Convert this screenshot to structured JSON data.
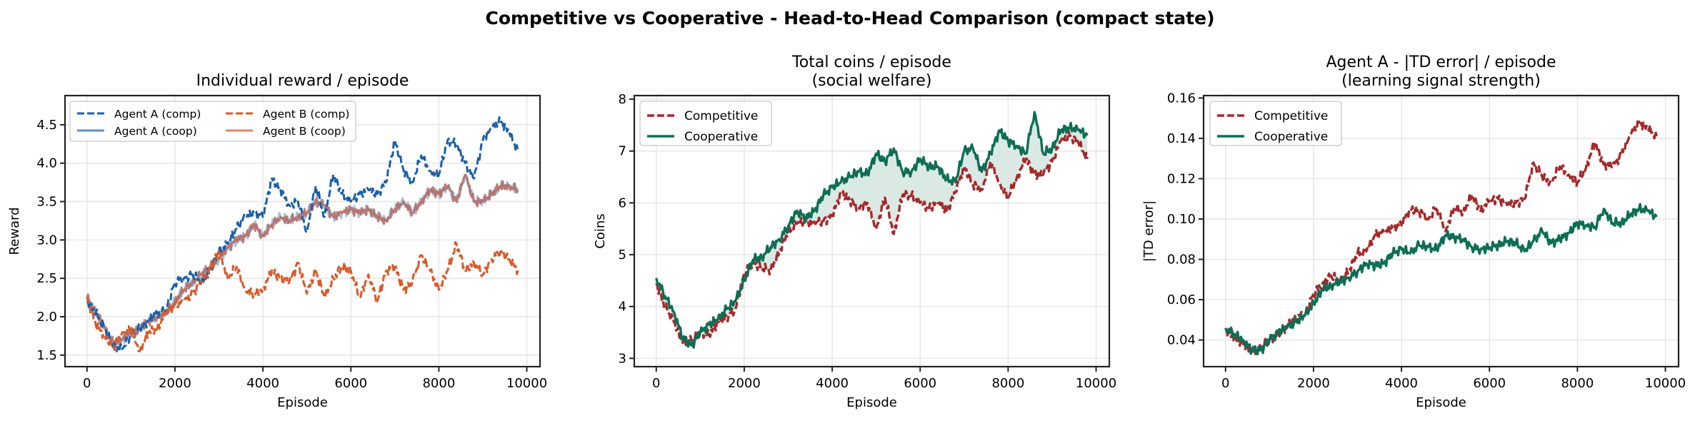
{
  "figure": {
    "title": "Competitive vs Cooperative - Head-to-Head Comparison (compact state)"
  },
  "chart_data": [
    {
      "type": "line",
      "title": "Individual reward / episode",
      "xlabel": "Episode",
      "ylabel": "Reward",
      "xlim": [
        -500,
        10300
      ],
      "ylim": [
        1.35,
        4.88
      ],
      "xticks": [
        0,
        2000,
        4000,
        6000,
        8000,
        10000
      ],
      "xtick_labels": [
        "0",
        "2000",
        "4000",
        "6000",
        "8000",
        "10000"
      ],
      "yticks": [
        1.5,
        2.0,
        2.5,
        3.0,
        3.5,
        4.0,
        4.5
      ],
      "ytick_labels": [
        "1.5",
        "2.0",
        "2.5",
        "3.0",
        "3.5",
        "4.0",
        "4.5"
      ],
      "grid": true,
      "legend": {
        "position": "upper left",
        "columns": 2
      },
      "x": [
        0,
        200,
        400,
        600,
        800,
        1000,
        1200,
        1400,
        1600,
        1800,
        2000,
        2200,
        2400,
        2600,
        2800,
        3000,
        3200,
        3400,
        3600,
        3800,
        4000,
        4200,
        4400,
        4600,
        4800,
        5000,
        5200,
        5400,
        5600,
        5800,
        6000,
        6200,
        6400,
        6600,
        6800,
        7000,
        7200,
        7400,
        7600,
        7800,
        8000,
        8200,
        8400,
        8600,
        8800,
        9000,
        9200,
        9400,
        9600,
        9800
      ],
      "series": [
        {
          "name": "Agent A (comp)",
          "color": "#1a5fa8",
          "style": "dashed",
          "width": 3,
          "values": [
            2.2,
            2.05,
            1.85,
            1.6,
            1.58,
            1.75,
            1.85,
            1.95,
            2.05,
            2.1,
            2.45,
            2.5,
            2.55,
            2.45,
            2.6,
            2.85,
            2.95,
            3.15,
            3.3,
            3.35,
            3.3,
            3.8,
            3.65,
            3.45,
            3.5,
            3.1,
            3.7,
            3.3,
            3.85,
            3.6,
            3.5,
            3.6,
            3.65,
            3.6,
            3.75,
            4.3,
            3.9,
            3.75,
            4.1,
            3.9,
            3.85,
            4.3,
            4.25,
            4.0,
            3.8,
            4.3,
            4.45,
            4.55,
            4.4,
            4.15
          ]
        },
        {
          "name": "Agent A (coop)",
          "color": "#5b8fc9",
          "style": "solid",
          "width": 3,
          "opacity": 0.55,
          "values": [
            2.25,
            2.05,
            1.85,
            1.65,
            1.7,
            1.8,
            1.85,
            1.95,
            2.0,
            2.05,
            2.2,
            2.35,
            2.45,
            2.55,
            2.65,
            2.75,
            2.9,
            3.0,
            3.05,
            3.2,
            3.05,
            3.2,
            3.3,
            3.25,
            3.3,
            3.35,
            3.5,
            3.45,
            3.3,
            3.35,
            3.4,
            3.35,
            3.4,
            3.3,
            3.25,
            3.4,
            3.5,
            3.35,
            3.5,
            3.65,
            3.6,
            3.7,
            3.5,
            3.85,
            3.5,
            3.5,
            3.6,
            3.7,
            3.7,
            3.65
          ]
        },
        {
          "name": "Agent B (comp)",
          "color": "#d85a2a",
          "style": "dashed",
          "width": 3,
          "values": [
            2.25,
            1.9,
            1.75,
            1.6,
            1.8,
            1.85,
            1.55,
            1.8,
            1.85,
            2.05,
            2.15,
            2.2,
            2.3,
            2.45,
            2.6,
            2.85,
            2.5,
            2.65,
            2.35,
            2.3,
            2.35,
            2.6,
            2.5,
            2.45,
            2.7,
            2.3,
            2.6,
            2.25,
            2.5,
            2.65,
            2.6,
            2.25,
            2.55,
            2.2,
            2.6,
            2.65,
            2.35,
            2.45,
            2.8,
            2.6,
            2.35,
            2.6,
            2.95,
            2.6,
            2.7,
            2.55,
            2.75,
            2.85,
            2.75,
            2.6
          ]
        },
        {
          "name": "Agent B (coop)",
          "color": "#e8836a",
          "style": "solid",
          "width": 3,
          "opacity": 0.85,
          "render_color": "#b5675c",
          "values": [
            2.25,
            2.05,
            1.85,
            1.65,
            1.7,
            1.8,
            1.85,
            1.95,
            2.0,
            2.05,
            2.2,
            2.35,
            2.45,
            2.55,
            2.65,
            2.75,
            2.9,
            3.0,
            3.05,
            3.2,
            3.05,
            3.2,
            3.3,
            3.25,
            3.3,
            3.35,
            3.5,
            3.45,
            3.3,
            3.35,
            3.4,
            3.35,
            3.4,
            3.3,
            3.25,
            3.4,
            3.5,
            3.35,
            3.5,
            3.65,
            3.6,
            3.7,
            3.5,
            3.85,
            3.5,
            3.5,
            3.6,
            3.7,
            3.7,
            3.65
          ]
        }
      ]
    },
    {
      "type": "line",
      "title": "Total coins / episode\n(social welfare)",
      "title_lines": [
        "Total coins / episode",
        "(social welfare)"
      ],
      "xlabel": "Episode",
      "ylabel": "Coins",
      "xlim": [
        -500,
        10300
      ],
      "ylim": [
        2.84,
        8.07
      ],
      "xticks": [
        0,
        2000,
        4000,
        6000,
        8000,
        10000
      ],
      "xtick_labels": [
        "0",
        "2000",
        "4000",
        "6000",
        "8000",
        "10000"
      ],
      "yticks": [
        3,
        4,
        5,
        6,
        7,
        8
      ],
      "ytick_labels": [
        "3",
        "4",
        "5",
        "6",
        "7",
        "8"
      ],
      "grid": true,
      "fill_between": {
        "color": "#dbe9e4",
        "between": [
          "Competitive",
          "Cooperative"
        ]
      },
      "legend": {
        "position": "upper left",
        "columns": 1
      },
      "x": [
        0,
        200,
        400,
        600,
        800,
        1000,
        1200,
        1400,
        1600,
        1800,
        2000,
        2200,
        2400,
        2600,
        2800,
        3000,
        3200,
        3400,
        3600,
        3800,
        4000,
        4200,
        4400,
        4600,
        4800,
        5000,
        5200,
        5400,
        5600,
        5800,
        6000,
        6200,
        6400,
        6600,
        6800,
        7000,
        7200,
        7400,
        7600,
        7800,
        8000,
        8200,
        8400,
        8600,
        8800,
        9000,
        9200,
        9400,
        9600,
        9800
      ],
      "series": [
        {
          "name": "Competitive",
          "color": "#a4292b",
          "style": "dashed",
          "width": 3.4,
          "values": [
            4.45,
            4.0,
            3.7,
            3.3,
            3.35,
            3.5,
            3.45,
            3.7,
            3.8,
            3.95,
            4.65,
            4.85,
            4.75,
            4.7,
            5.05,
            5.45,
            5.6,
            5.65,
            5.6,
            5.65,
            5.75,
            6.2,
            6.05,
            5.9,
            6.0,
            5.5,
            6.1,
            5.4,
            6.15,
            6.15,
            6.0,
            5.9,
            6.0,
            5.85,
            6.2,
            6.7,
            6.35,
            6.25,
            6.8,
            6.4,
            6.1,
            6.5,
            6.85,
            6.55,
            6.55,
            6.8,
            7.2,
            7.3,
            7.15,
            6.85
          ]
        },
        {
          "name": "Cooperative",
          "color": "#0e6e55",
          "style": "solid",
          "width": 3.4,
          "values": [
            4.55,
            4.2,
            3.9,
            3.4,
            3.25,
            3.5,
            3.65,
            3.75,
            3.95,
            4.1,
            4.5,
            4.9,
            4.95,
            5.15,
            5.3,
            5.55,
            5.85,
            5.7,
            5.85,
            6.15,
            6.3,
            6.4,
            6.5,
            6.6,
            6.55,
            6.95,
            6.8,
            7.05,
            6.6,
            6.6,
            6.85,
            6.7,
            6.7,
            6.45,
            6.4,
            7.0,
            7.05,
            6.6,
            6.95,
            7.4,
            7.2,
            7.1,
            6.95,
            7.75,
            6.95,
            7.05,
            7.4,
            7.45,
            7.4,
            7.3
          ]
        }
      ]
    },
    {
      "type": "line",
      "title": "Agent A - |TD error| / episode\n(learning signal strength)",
      "title_lines": [
        "Agent A - |TD error| / episode",
        "(learning signal strength)"
      ],
      "xlabel": "Episode",
      "ylabel": "|TD error|",
      "xlim": [
        -500,
        10300
      ],
      "ylim": [
        0.0268,
        0.1612
      ],
      "xticks": [
        0,
        2000,
        4000,
        6000,
        8000,
        10000
      ],
      "xtick_labels": [
        "0",
        "2000",
        "4000",
        "6000",
        "8000",
        "10000"
      ],
      "yticks": [
        0.04,
        0.06,
        0.08,
        0.1,
        0.12,
        0.14,
        0.16
      ],
      "ytick_labels": [
        "0.04",
        "0.06",
        "0.08",
        "0.10",
        "0.12",
        "0.14",
        "0.16"
      ],
      "grid": true,
      "legend": {
        "position": "upper left",
        "columns": 1
      },
      "x": [
        0,
        200,
        400,
        600,
        800,
        1000,
        1200,
        1400,
        1600,
        1800,
        2000,
        2200,
        2400,
        2600,
        2800,
        3000,
        3200,
        3400,
        3600,
        3800,
        4000,
        4200,
        4400,
        4600,
        4800,
        5000,
        5200,
        5400,
        5600,
        5800,
        6000,
        6200,
        6400,
        6600,
        6800,
        7000,
        7200,
        7400,
        7600,
        7800,
        8000,
        8200,
        8400,
        8600,
        8800,
        9000,
        9200,
        9400,
        9600,
        9800
      ],
      "series": [
        {
          "name": "Competitive",
          "color": "#a4292b",
          "style": "dashed",
          "width": 3.4,
          "values": [
            0.045,
            0.041,
            0.038,
            0.034,
            0.036,
            0.04,
            0.043,
            0.047,
            0.051,
            0.053,
            0.063,
            0.068,
            0.072,
            0.069,
            0.074,
            0.083,
            0.084,
            0.092,
            0.093,
            0.096,
            0.097,
            0.105,
            0.104,
            0.1,
            0.106,
            0.094,
            0.106,
            0.103,
            0.112,
            0.104,
            0.109,
            0.11,
            0.107,
            0.108,
            0.11,
            0.128,
            0.121,
            0.118,
            0.126,
            0.122,
            0.118,
            0.126,
            0.138,
            0.127,
            0.126,
            0.132,
            0.141,
            0.148,
            0.145,
            0.141
          ]
        },
        {
          "name": "Cooperative",
          "color": "#0e6e55",
          "style": "solid",
          "width": 3.4,
          "values": [
            0.046,
            0.043,
            0.04,
            0.035,
            0.035,
            0.04,
            0.044,
            0.046,
            0.049,
            0.052,
            0.058,
            0.065,
            0.067,
            0.069,
            0.071,
            0.074,
            0.078,
            0.077,
            0.078,
            0.083,
            0.085,
            0.083,
            0.087,
            0.086,
            0.085,
            0.092,
            0.091,
            0.09,
            0.086,
            0.085,
            0.086,
            0.087,
            0.089,
            0.088,
            0.084,
            0.089,
            0.094,
            0.088,
            0.09,
            0.093,
            0.098,
            0.097,
            0.096,
            0.105,
            0.098,
            0.098,
            0.102,
            0.105,
            0.104,
            0.101
          ]
        }
      ]
    }
  ]
}
